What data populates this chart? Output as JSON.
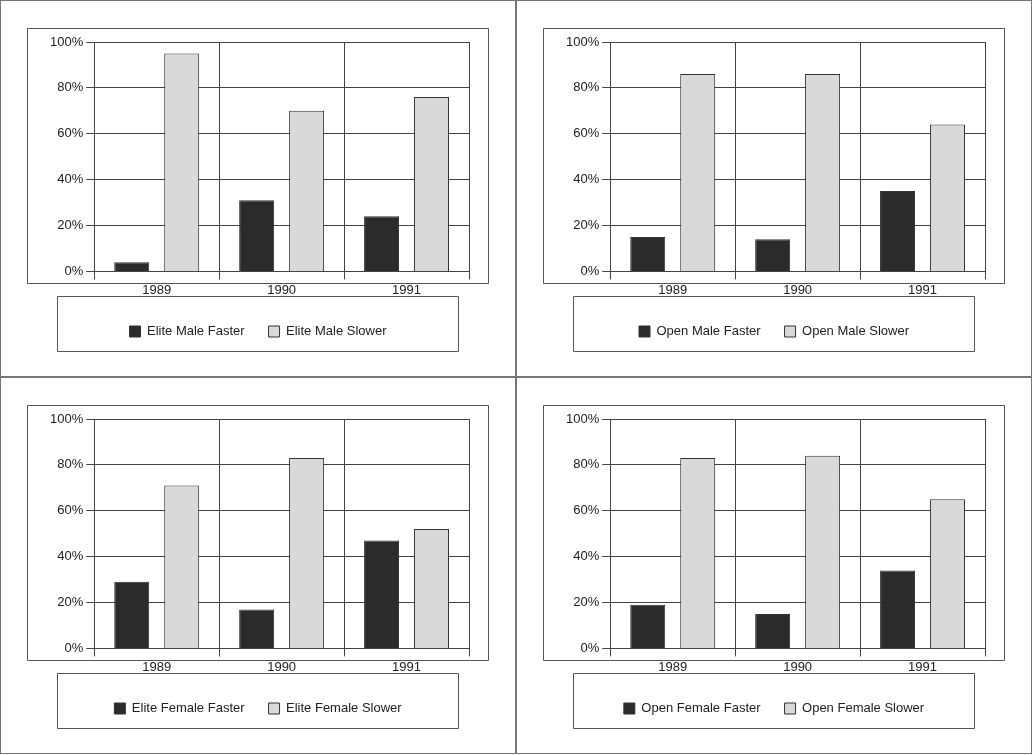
{
  "chart_data": [
    {
      "type": "bar",
      "categories": [
        "1989",
        "1990",
        "1991"
      ],
      "series": [
        {
          "name": "Elite Male Faster",
          "color": "#2b2b2b",
          "values": [
            4,
            31,
            24
          ]
        },
        {
          "name": "Elite Male Slower",
          "color": "#d9d9d9",
          "values": [
            95,
            70,
            76
          ]
        }
      ],
      "ylim": [
        0,
        100
      ],
      "yticks": [
        {
          "value": 0,
          "label": "0%"
        },
        {
          "value": 20,
          "label": "20%"
        },
        {
          "value": 40,
          "label": "40%"
        },
        {
          "value": 60,
          "label": "60%"
        },
        {
          "value": 80,
          "label": "80%"
        },
        {
          "value": 100,
          "label": "100%"
        }
      ],
      "grid": true,
      "legend": "bottom"
    },
    {
      "type": "bar",
      "categories": [
        "1989",
        "1990",
        "1991"
      ],
      "series": [
        {
          "name": "Open Male Faster",
          "color": "#2b2b2b",
          "values": [
            15,
            14,
            35
          ]
        },
        {
          "name": "Open Male Slower",
          "color": "#d9d9d9",
          "values": [
            86,
            86,
            64
          ]
        }
      ],
      "ylim": [
        0,
        100
      ],
      "yticks": [
        {
          "value": 0,
          "label": "0%"
        },
        {
          "value": 20,
          "label": "20%"
        },
        {
          "value": 40,
          "label": "40%"
        },
        {
          "value": 60,
          "label": "60%"
        },
        {
          "value": 80,
          "label": "80%"
        },
        {
          "value": 100,
          "label": "100%"
        }
      ],
      "grid": true,
      "legend": "bottom"
    },
    {
      "type": "bar",
      "categories": [
        "1989",
        "1990",
        "1991"
      ],
      "series": [
        {
          "name": "Elite Female Faster",
          "color": "#2b2b2b",
          "values": [
            29,
            17,
            47
          ]
        },
        {
          "name": "Elite Female Slower",
          "color": "#d9d9d9",
          "values": [
            71,
            83,
            52
          ]
        }
      ],
      "ylim": [
        0,
        100
      ],
      "yticks": [
        {
          "value": 0,
          "label": "0%"
        },
        {
          "value": 20,
          "label": "20%"
        },
        {
          "value": 40,
          "label": "40%"
        },
        {
          "value": 60,
          "label": "60%"
        },
        {
          "value": 80,
          "label": "80%"
        },
        {
          "value": 100,
          "label": "100%"
        }
      ],
      "grid": true,
      "legend": "bottom"
    },
    {
      "type": "bar",
      "categories": [
        "1989",
        "1990",
        "1991"
      ],
      "series": [
        {
          "name": "Open Female Faster",
          "color": "#2b2b2b",
          "values": [
            19,
            15,
            34
          ]
        },
        {
          "name": "Open Female Slower",
          "color": "#d9d9d9",
          "values": [
            83,
            84,
            65
          ]
        }
      ],
      "ylim": [
        0,
        100
      ],
      "yticks": [
        {
          "value": 0,
          "label": "0%"
        },
        {
          "value": 20,
          "label": "20%"
        },
        {
          "value": 40,
          "label": "40%"
        },
        {
          "value": 60,
          "label": "60%"
        },
        {
          "value": 80,
          "label": "80%"
        },
        {
          "value": 100,
          "label": "100%"
        }
      ],
      "grid": true,
      "legend": "bottom"
    }
  ]
}
